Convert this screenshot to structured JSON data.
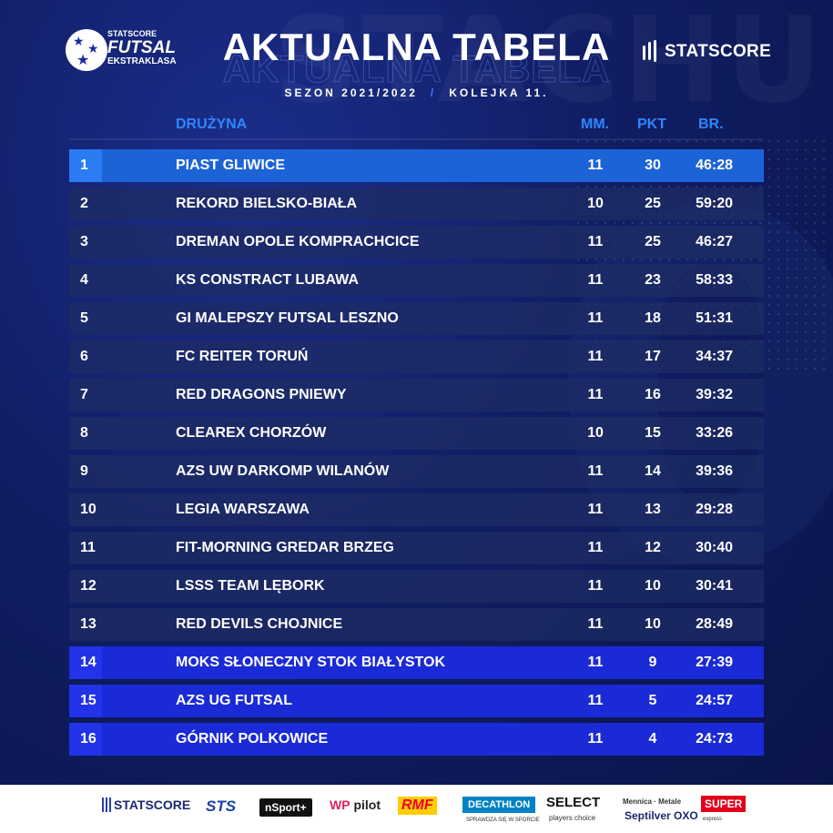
{
  "header": {
    "league_logo": {
      "line1": "STATSCORE",
      "line2": "FUTSAL",
      "line3": "EKSTRAKLASA"
    },
    "title": "AKTUALNA TABELA",
    "season": "SEZON 2021/2022",
    "separator": "/",
    "round": "KOLEJKA 11.",
    "sponsor_logo": "STATSCORE"
  },
  "table": {
    "columns": {
      "team": "DRUŻYNA",
      "matches": "MM.",
      "points": "PKT",
      "goals": "BR."
    },
    "rows": [
      {
        "pos": "1",
        "team": "PIAST GLIWICE",
        "mm": "11",
        "pkt": "30",
        "br": "46:28",
        "zone": "leader"
      },
      {
        "pos": "2",
        "team": "REKORD BIELSKO-BIAŁA",
        "mm": "10",
        "pkt": "25",
        "br": "59:20",
        "zone": "normal"
      },
      {
        "pos": "3",
        "team": "DREMAN OPOLE KOMPRACHCICE",
        "mm": "11",
        "pkt": "25",
        "br": "46:27",
        "zone": "normal"
      },
      {
        "pos": "4",
        "team": "KS CONSTRACT LUBAWA",
        "mm": "11",
        "pkt": "23",
        "br": "58:33",
        "zone": "normal"
      },
      {
        "pos": "5",
        "team": "GI MALEPSZY FUTSAL LESZNO",
        "mm": "11",
        "pkt": "18",
        "br": "51:31",
        "zone": "normal"
      },
      {
        "pos": "6",
        "team": "FC REITER TORUŃ",
        "mm": "11",
        "pkt": "17",
        "br": "34:37",
        "zone": "normal"
      },
      {
        "pos": "7",
        "team": "RED DRAGONS PNIEWY",
        "mm": "11",
        "pkt": "16",
        "br": "39:32",
        "zone": "normal"
      },
      {
        "pos": "8",
        "team": "CLEAREX CHORZÓW",
        "mm": "10",
        "pkt": "15",
        "br": "33:26",
        "zone": "normal"
      },
      {
        "pos": "9",
        "team": "AZS UW DARKOMP WILANÓW",
        "mm": "11",
        "pkt": "14",
        "br": "39:36",
        "zone": "normal"
      },
      {
        "pos": "10",
        "team": "LEGIA WARSZAWA",
        "mm": "11",
        "pkt": "13",
        "br": "29:28",
        "zone": "normal"
      },
      {
        "pos": "11",
        "team": "FIT-MORNING GREDAR BRZEG",
        "mm": "11",
        "pkt": "12",
        "br": "30:40",
        "zone": "normal"
      },
      {
        "pos": "12",
        "team": "LSSS TEAM LĘBORK",
        "mm": "11",
        "pkt": "10",
        "br": "30:41",
        "zone": "normal"
      },
      {
        "pos": "13",
        "team": "RED DEVILS CHOJNICE",
        "mm": "11",
        "pkt": "10",
        "br": "28:49",
        "zone": "normal"
      },
      {
        "pos": "14",
        "team": "MOKS SŁONECZNY STOK BIAŁYSTOK",
        "mm": "11",
        "pkt": "9",
        "br": "27:39",
        "zone": "relegation"
      },
      {
        "pos": "15",
        "team": "AZS UG FUTSAL",
        "mm": "11",
        "pkt": "5",
        "br": "24:57",
        "zone": "relegation"
      },
      {
        "pos": "16",
        "team": "GÓRNIK POLKOWICE",
        "mm": "11",
        "pkt": "4",
        "br": "24:73",
        "zone": "relegation"
      }
    ]
  },
  "sponsors": {
    "statscore": "STATSCORE",
    "sts": "STS",
    "nsport": "nSport+",
    "wp_logo": "WP",
    "wp_pilot": "pilot",
    "rmf": "RMF",
    "decathlon": "DECATHLON",
    "decathlon_sub": "SPRAWDZA SIĘ W SPORCIE",
    "select": "SELECT",
    "select_sub": "players choice",
    "mennica": "Mennica · Metale",
    "mennica_sub": "Septilver OXO",
    "super": "SUPER",
    "super_sub": "express"
  },
  "colors": {
    "background": "#101d63",
    "accent_blue": "#2e86ff",
    "leader_row": "#1d63d8",
    "relegation_row": "#1a2ad6",
    "row": "#1e2d64"
  }
}
